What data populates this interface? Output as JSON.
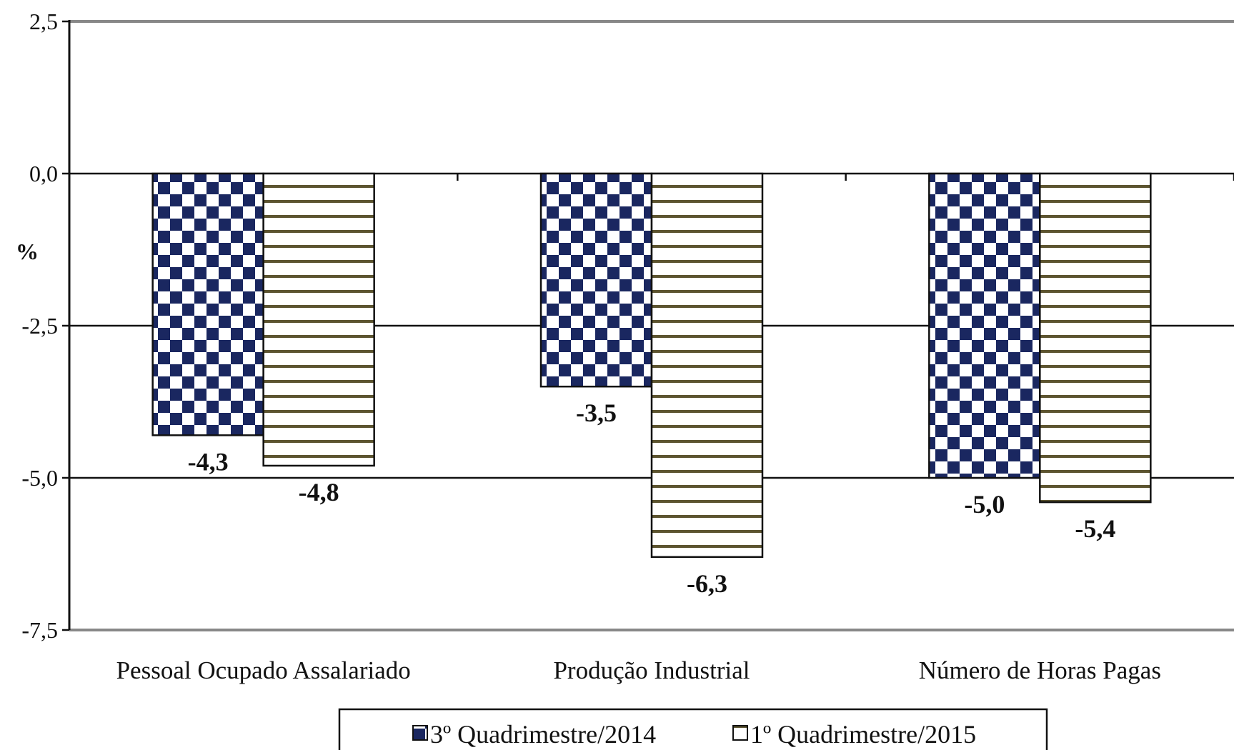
{
  "chart_data": {
    "type": "bar",
    "ylabel": "%",
    "ylim": [
      -7.5,
      2.5
    ],
    "yticks": [
      "2,5",
      "0,0",
      "-2,5",
      "-5,0",
      "-7,5"
    ],
    "yticks_values": [
      2.5,
      0,
      -2.5,
      -5.0,
      -7.5
    ],
    "grid": true,
    "legend_position": "bottom",
    "categories": [
      "Pessoal Ocupado Assalariado",
      "Produção Industrial",
      "Número de Horas Pagas"
    ],
    "series": [
      {
        "name": "3º Quadrimestre/2014",
        "values": [
          -4.3,
          -3.5,
          -5.0
        ],
        "labels": [
          "-4,3",
          "-3,5",
          "-5,0"
        ],
        "pattern": "checkerboard",
        "color": "#1a2760"
      },
      {
        "name": "1º Quadrimestre/2015",
        "values": [
          -4.8,
          -6.3,
          -5.4
        ],
        "labels": [
          "-4,8",
          "-6,3",
          "-5,4"
        ],
        "pattern": "horizontal-stripes",
        "color": "#5c5430"
      }
    ]
  }
}
